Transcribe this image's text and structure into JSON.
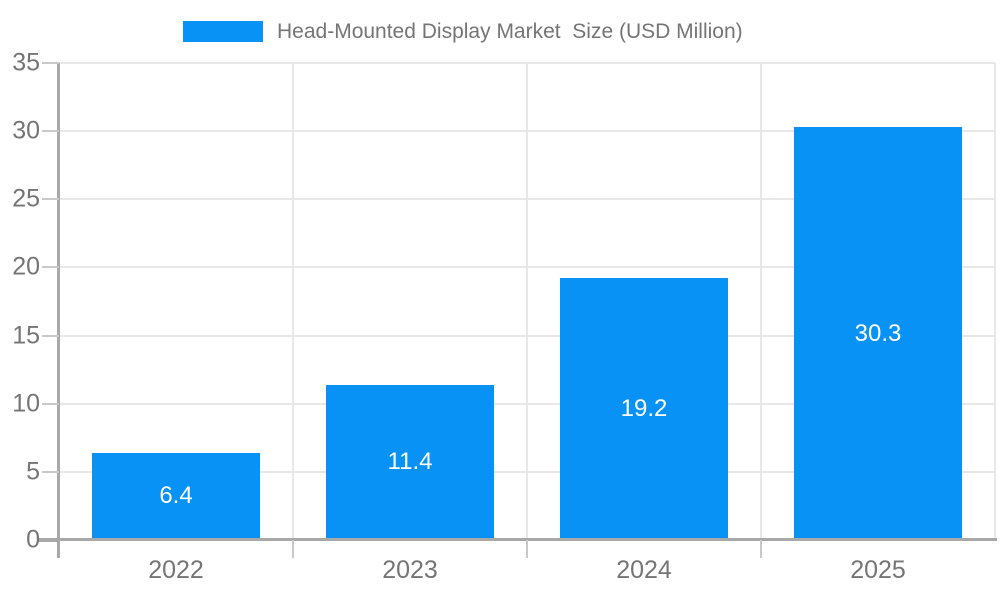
{
  "chart_data": {
    "type": "bar",
    "title": "Head-Mounted Display Market  Size (USD Million)",
    "legend": {
      "position": "top-center",
      "items": [
        {
          "label": "Head-Mounted Display Market  Size (USD Million)",
          "swatch_color": "#0892F5"
        }
      ]
    },
    "categories": [
      "2022",
      "2023",
      "2024",
      "2025"
    ],
    "values": [
      6.4,
      11.4,
      19.2,
      30.3
    ],
    "value_labels": [
      "6.4",
      "11.4",
      "19.2",
      "30.3"
    ],
    "series": [
      {
        "name": "Head-Mounted Display Market  Size (USD Million)",
        "values": [
          6.4,
          11.4,
          19.2,
          30.3
        ]
      }
    ],
    "xlabel": "",
    "ylabel": "",
    "ylim": [
      0,
      35
    ],
    "yticks": [
      0,
      5,
      10,
      15,
      20,
      25,
      30,
      35
    ],
    "grid": true,
    "bar_width_fraction": 0.72,
    "bar_color": "#0892F5",
    "bar_label_color": "#FFFFFF",
    "bar_label_position": "inside-center"
  },
  "colors": {
    "background": "#FFFFFF",
    "bar": "#0892F5",
    "grid_line": "#E8E8E8",
    "tick_line": "#C9C9C9",
    "axis_line": "#A8A8A8",
    "axis_label_text": "#757575",
    "title_text": "#757575",
    "value_label_text": "#FFFFFF"
  }
}
